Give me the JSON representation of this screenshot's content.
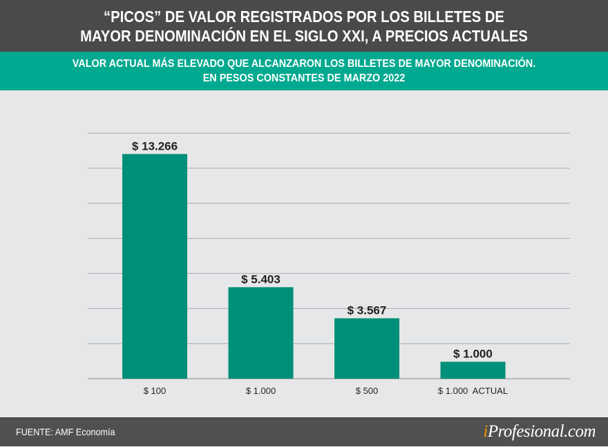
{
  "header": {
    "title_line1": "“PICOS” DE VALOR REGISTRADOS POR LOS BILLETES DE",
    "title_line2": "MAYOR DENOMINACIÓN EN EL SIGLO XXI, A PRECIOS ACTUALES"
  },
  "subheader": {
    "line1": "VALOR ACTUAL MÁS ELEVADO QUE ALCANZARON LOS BILLETES DE MAYOR DENOMINACIÓN.",
    "line2": "EN PESOS CONSTANTES DE MARZO 2022"
  },
  "chart_data": {
    "type": "bar",
    "categories": [
      "$ 100",
      "$ 1.000",
      "$ 500",
      "$ 1.000  ACTUAL"
    ],
    "values": [
      13266,
      5403,
      3567,
      1000
    ],
    "data_labels": [
      "$ 13.266",
      "$ 5.403",
      "$ 3.567",
      "$ 1.000"
    ],
    "ylim": [
      0,
      14500
    ],
    "grid": true,
    "bar_color": "#008f78"
  },
  "footer": {
    "source": "FUENTE: AMF Economía",
    "logo_i": "i",
    "logo_rest": "Profesional.com"
  }
}
